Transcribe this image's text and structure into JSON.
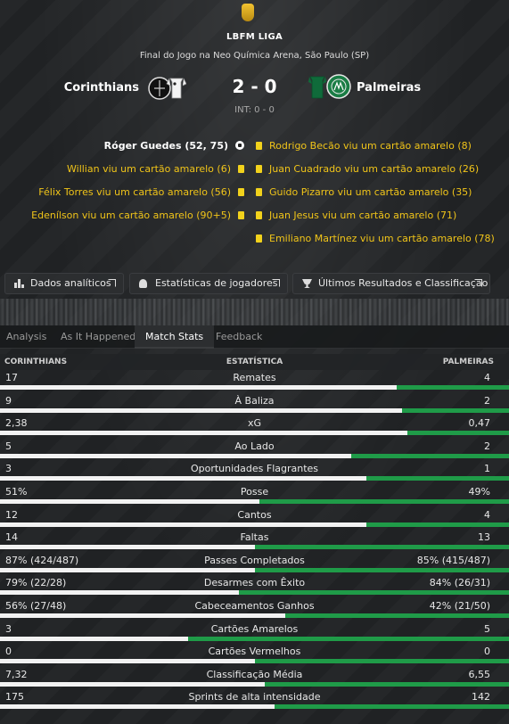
{
  "header": {
    "league": "LBFM LIGA",
    "venue": "Final do Jogo na Neo Química Arena, São Paulo (SP)",
    "home_team": "Corinthians",
    "away_team": "Palmeiras",
    "score": "2 - 0",
    "half_time": "INT: 0 - 0"
  },
  "events": {
    "home": [
      {
        "text": "Róger Guedes (52, 75)",
        "type": "goal"
      },
      {
        "text": "Willian viu um cartão amarelo (6)",
        "type": "yellow"
      },
      {
        "text": "Félix Torres viu um cartão amarelo (56)",
        "type": "yellow"
      },
      {
        "text": "Edenílson viu um cartão amarelo (90+5)",
        "type": "yellow"
      }
    ],
    "away": [
      {
        "text": "Rodrigo Becão viu um cartão amarelo (8)",
        "type": "yellow"
      },
      {
        "text": "Juan Cuadrado viu um cartão amarelo (26)",
        "type": "yellow"
      },
      {
        "text": "Guido Pizarro viu um cartão amarelo (35)",
        "type": "yellow"
      },
      {
        "text": "Juan Jesus viu um cartão amarelo (71)",
        "type": "yellow"
      },
      {
        "text": "Emiliano Martínez viu um cartão amarelo (78)",
        "type": "yellow"
      }
    ]
  },
  "buttons": {
    "analytics": "Dados analíticos",
    "player_stats": "Estatísticas de jogadores",
    "results": "Últimos Resultados e Classificação"
  },
  "tabs": [
    "Analysis",
    "As It Happened",
    "Match Stats",
    "Feedback"
  ],
  "active_tab": "Match Stats",
  "stats_header": {
    "home": "CORINTHIANS",
    "label": "ESTATÍSTICA",
    "away": "PALMEIRAS"
  },
  "colors": {
    "home_bar": "#f2f2f2",
    "away_bar": "#1f9b48",
    "card": "#f2d21c",
    "event_text": "#f0c419"
  },
  "stats": [
    {
      "label": "Remates",
      "home": "17",
      "away": "4",
      "home_share": 0.78
    },
    {
      "label": "À Baliza",
      "home": "9",
      "away": "2",
      "home_share": 0.79
    },
    {
      "label": "xG",
      "home": "2,38",
      "away": "0,47",
      "home_share": 0.8
    },
    {
      "label": "Ao Lado",
      "home": "5",
      "away": "2",
      "home_share": 0.69
    },
    {
      "label": "Oportunidades Flagrantes",
      "home": "3",
      "away": "1",
      "home_share": 0.72
    },
    {
      "label": "Posse",
      "home": "51%",
      "away": "49%",
      "home_share": 0.51
    },
    {
      "label": "Cantos",
      "home": "12",
      "away": "4",
      "home_share": 0.72
    },
    {
      "label": "Faltas",
      "home": "14",
      "away": "13",
      "home_share": 0.5
    },
    {
      "label": "Passes Completados",
      "home": "87% (424/487)",
      "away": "85% (415/487)",
      "home_share": 0.5
    },
    {
      "label": "Desarmes com Êxito",
      "home": "79% (22/28)",
      "away": "84% (26/31)",
      "home_share": 0.47
    },
    {
      "label": "Cabeceamentos Ganhos",
      "home": "56% (27/48)",
      "away": "42% (21/50)",
      "home_share": 0.56
    },
    {
      "label": "Cartões Amarelos",
      "home": "3",
      "away": "5",
      "home_share": 0.37
    },
    {
      "label": "Cartões Vermelhos",
      "home": "0",
      "away": "0",
      "home_share": 0.5
    },
    {
      "label": "Classificação Média",
      "home": "7,32",
      "away": "6,55",
      "home_share": 0.52
    },
    {
      "label": "Sprints de alta intensidade",
      "home": "175",
      "away": "142",
      "home_share": 0.54
    }
  ]
}
